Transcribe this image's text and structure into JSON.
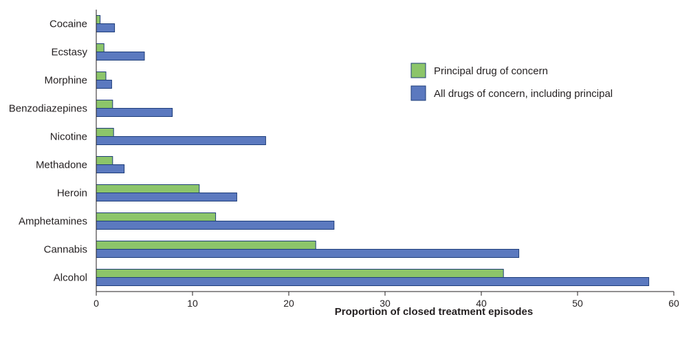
{
  "chart_data": {
    "type": "bar",
    "orientation": "horizontal",
    "categories": [
      "Alcohol",
      "Cannabis",
      "Amphetamines",
      "Heroin",
      "Methadone",
      "Nicotine",
      "Benzodiazepines",
      "Morphine",
      "Ecstasy",
      "Cocaine"
    ],
    "series": [
      {
        "name": "Principal drug of concern",
        "color": "#8cc56a",
        "values": [
          42.3,
          22.8,
          12.4,
          10.7,
          1.7,
          1.8,
          1.7,
          1.0,
          0.8,
          0.4
        ]
      },
      {
        "name": "All drugs of concern, including principal",
        "color": "#5b79bf",
        "values": [
          57.4,
          43.9,
          24.7,
          14.6,
          2.9,
          17.6,
          7.9,
          1.6,
          5.0,
          1.9
        ]
      }
    ],
    "title": "",
    "xlabel": "Proportion of closed treatment episodes",
    "ylabel": "",
    "xlim": [
      0,
      60
    ],
    "xticks": [
      "0",
      "10",
      "20",
      "30",
      "40",
      "50",
      "60"
    ],
    "grid": false,
    "legend_position": "top-right"
  }
}
